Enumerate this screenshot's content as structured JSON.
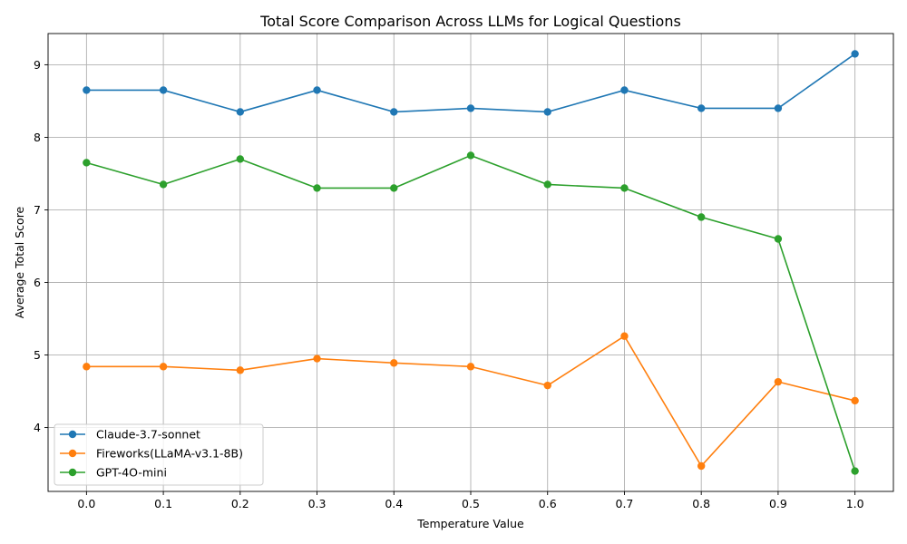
{
  "chart_data": {
    "type": "line",
    "title": "Total Score Comparison Across LLMs for Logical Questions",
    "xlabel": "Temperature Value",
    "ylabel": "Average Total Score",
    "x": [
      0.0,
      0.1,
      0.2,
      0.3,
      0.4,
      0.5,
      0.6,
      0.7,
      0.8,
      0.9,
      1.0
    ],
    "x_tick_labels": [
      "0.0",
      "0.1",
      "0.2",
      "0.3",
      "0.4",
      "0.5",
      "0.6",
      "0.7",
      "0.8",
      "0.9",
      "1.0"
    ],
    "y_ticks": [
      4,
      5,
      6,
      7,
      8,
      9
    ],
    "xlim": [
      -0.05,
      1.05
    ],
    "ylim": [
      3.12,
      9.43
    ],
    "grid": true,
    "legend_position": "lower-left",
    "marker": "circle",
    "series": [
      {
        "name": "Claude-3.7-sonnet",
        "color": "#1f77b4",
        "values": [
          8.65,
          8.65,
          8.35,
          8.65,
          8.35,
          8.4,
          8.35,
          8.65,
          8.4,
          8.4,
          9.15
        ]
      },
      {
        "name": "Fireworks(LLaMA-v3.1-8B)",
        "color": "#ff7f0e",
        "values": [
          4.84,
          4.84,
          4.79,
          4.95,
          4.89,
          4.84,
          4.58,
          5.26,
          3.47,
          4.63,
          4.37
        ]
      },
      {
        "name": "GPT-4O-mini",
        "color": "#2ca02c",
        "values": [
          7.65,
          7.35,
          7.7,
          7.3,
          7.3,
          7.75,
          7.35,
          7.3,
          6.9,
          6.6,
          3.4
        ]
      }
    ]
  }
}
